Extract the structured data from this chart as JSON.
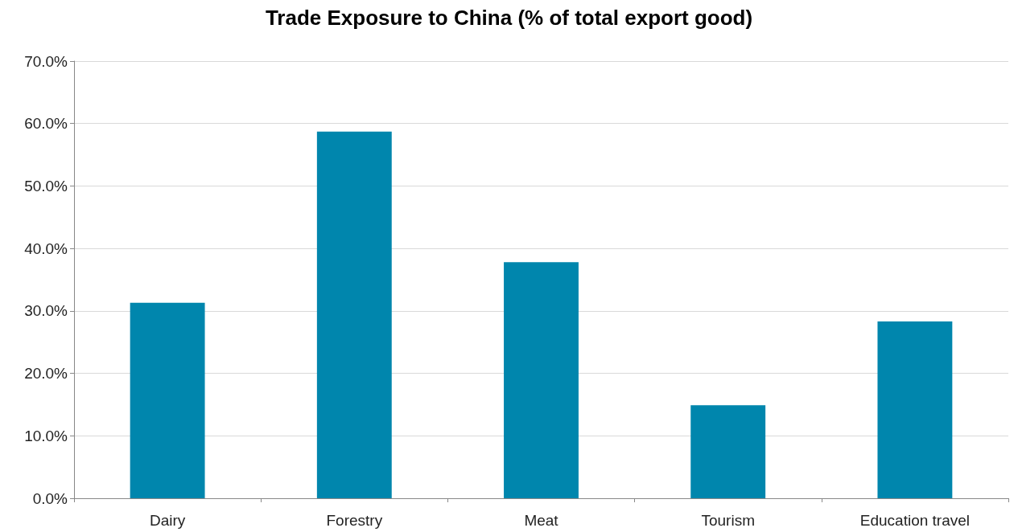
{
  "chart_data": {
    "type": "bar",
    "title": "Trade Exposure to China (% of total export good)",
    "categories": [
      "Dairy",
      "Forestry",
      "Meat",
      "Tourism",
      "Education travel"
    ],
    "values": [
      31.3,
      58.7,
      37.8,
      14.9,
      28.3
    ],
    "color": "#0086ad",
    "ylim": [
      0,
      70
    ],
    "yticks": [
      {
        "value": 0,
        "label": "0.0%"
      },
      {
        "value": 10,
        "label": "10.0%"
      },
      {
        "value": 20,
        "label": "20.0%"
      },
      {
        "value": 30,
        "label": "30.0%"
      },
      {
        "value": 40,
        "label": "40.0%"
      },
      {
        "value": 50,
        "label": "50.0%"
      },
      {
        "value": 60,
        "label": "60.0%"
      },
      {
        "value": 70,
        "label": "70.0%"
      }
    ],
    "grid": "y"
  }
}
